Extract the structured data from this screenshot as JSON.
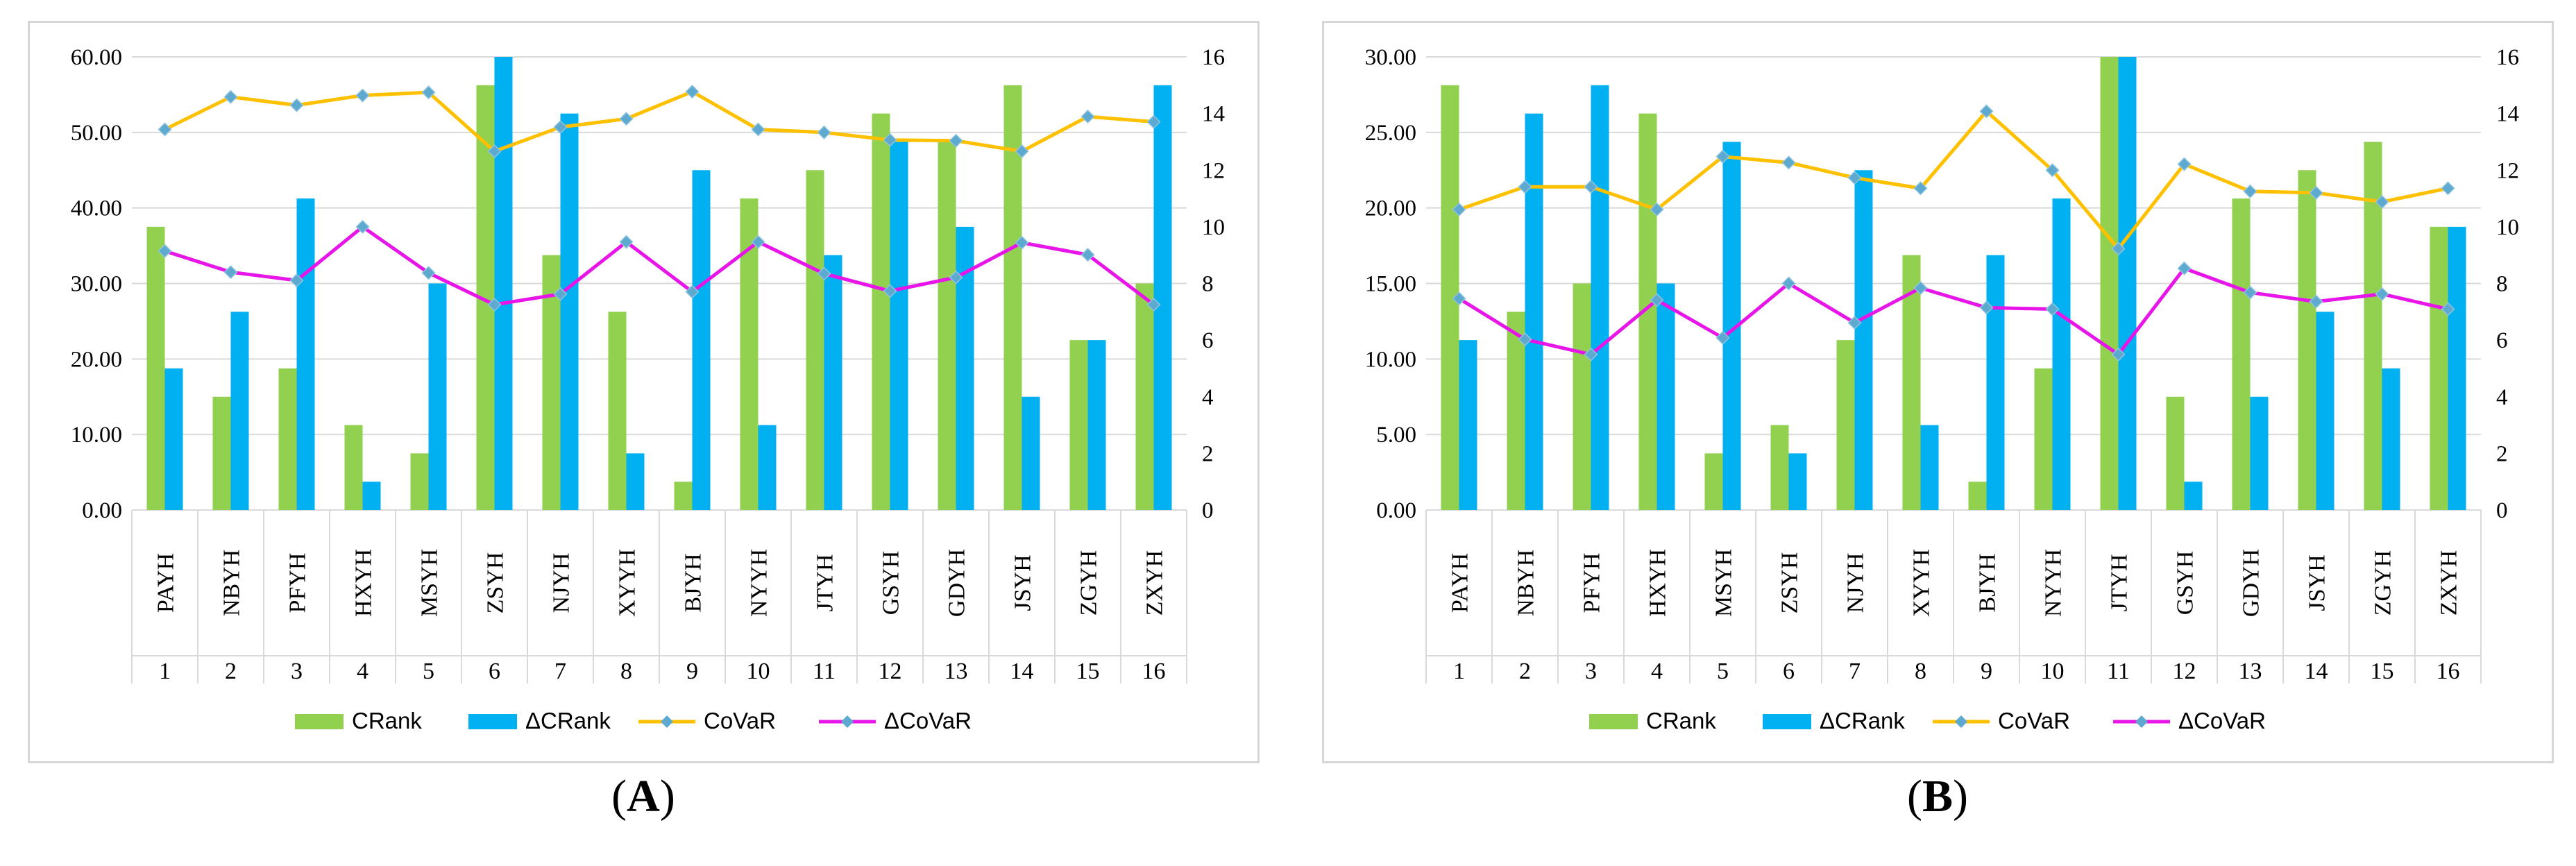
{
  "colors": {
    "crank": "#92d050",
    "dcrank": "#00b0f0",
    "covar": "#ffc000",
    "dcovar": "#e815e8",
    "marker": "#5ea9cf",
    "grid": "#d9d9d9",
    "frame": "#d6d6d6"
  },
  "chart_data": [
    {
      "type": "bar",
      "panel_label": "A",
      "categories": [
        "PAYH",
        "NBYH",
        "PFYH",
        "HXYH",
        "MSYH",
        "ZSYH",
        "NJYH",
        "XYYH",
        "BJYH",
        "NYYH",
        "JTYH",
        "GSYH",
        "GDYH",
        "JSYH",
        "ZGYH",
        "ZXYH"
      ],
      "indices": [
        "1",
        "2",
        "3",
        "4",
        "5",
        "6",
        "7",
        "8",
        "9",
        "10",
        "11",
        "12",
        "13",
        "14",
        "15",
        "16"
      ],
      "left_axis": {
        "min": 0,
        "max": 60,
        "step": 10,
        "ticks": [
          "0.00",
          "10.00",
          "20.00",
          "30.00",
          "40.00",
          "50.00",
          "60.00"
        ]
      },
      "right_axis": {
        "min": 0,
        "max": 16,
        "step": 2,
        "ticks": [
          "0",
          "2",
          "4",
          "6",
          "8",
          "10",
          "12",
          "14",
          "16"
        ]
      },
      "series": [
        {
          "name": "CRank",
          "kind": "bar",
          "axis": "right",
          "values": [
            10,
            4,
            5,
            3,
            2,
            15,
            9,
            7,
            1,
            11,
            12,
            14,
            13,
            15,
            6,
            8
          ]
        },
        {
          "name": "ΔCRank",
          "kind": "bar",
          "axis": "right",
          "values": [
            5,
            7,
            11,
            1,
            8,
            16,
            14,
            2,
            12,
            3,
            9,
            13,
            10,
            4,
            6,
            15
          ]
        },
        {
          "name": "CoVaR",
          "kind": "line",
          "axis": "left",
          "values": [
            50.4,
            54.7,
            53.6,
            54.9,
            55.3,
            47.5,
            50.7,
            51.8,
            55.4,
            50.4,
            50.0,
            49.0,
            48.9,
            47.5,
            52.1,
            51.4
          ]
        },
        {
          "name": "ΔCoVaR",
          "kind": "line",
          "axis": "left",
          "values": [
            34.3,
            31.5,
            30.4,
            37.5,
            31.4,
            27.2,
            28.6,
            35.5,
            28.9,
            35.5,
            31.3,
            29.0,
            30.8,
            35.4,
            33.8,
            27.2
          ]
        }
      ],
      "legend_position": "bottom"
    },
    {
      "type": "bar",
      "panel_label": "B",
      "categories": [
        "PAYH",
        "NBYH",
        "PFYH",
        "HXYH",
        "MSYH",
        "ZSYH",
        "NJYH",
        "XYYH",
        "BJYH",
        "NYYH",
        "JTYH",
        "GSYH",
        "GDYH",
        "JSYH",
        "ZGYH",
        "ZXYH"
      ],
      "indices": [
        "1",
        "2",
        "3",
        "4",
        "5",
        "6",
        "7",
        "8",
        "9",
        "10",
        "11",
        "12",
        "13",
        "14",
        "15",
        "16"
      ],
      "left_axis": {
        "min": 0,
        "max": 30,
        "step": 5,
        "ticks": [
          "0.00",
          "5.00",
          "10.00",
          "15.00",
          "20.00",
          "25.00",
          "30.00"
        ]
      },
      "right_axis": {
        "min": 0,
        "max": 16,
        "step": 2,
        "ticks": [
          "0",
          "2",
          "4",
          "6",
          "8",
          "10",
          "12",
          "14",
          "16"
        ]
      },
      "series": [
        {
          "name": "CRank",
          "kind": "bar",
          "axis": "right",
          "values": [
            15,
            7,
            8,
            14,
            2,
            3,
            6,
            9,
            1,
            5,
            16,
            4,
            11,
            12,
            13,
            10
          ]
        },
        {
          "name": "ΔCRank",
          "kind": "bar",
          "axis": "right",
          "values": [
            6,
            14,
            15,
            8,
            13,
            2,
            12,
            3,
            9,
            11,
            16,
            1,
            4,
            7,
            5,
            10
          ]
        },
        {
          "name": "CoVaR",
          "kind": "line",
          "axis": "left",
          "values": [
            19.9,
            21.4,
            21.4,
            19.9,
            23.4,
            23.0,
            22.0,
            21.3,
            26.4,
            22.5,
            17.3,
            22.9,
            21.1,
            21.0,
            20.4,
            21.3
          ]
        },
        {
          "name": "ΔCoVaR",
          "kind": "line",
          "axis": "left",
          "values": [
            14.0,
            11.3,
            10.3,
            13.9,
            11.4,
            15.0,
            12.4,
            14.7,
            13.4,
            13.3,
            10.3,
            16.0,
            14.4,
            13.8,
            14.3,
            13.3
          ]
        }
      ],
      "legend_position": "bottom"
    }
  ]
}
